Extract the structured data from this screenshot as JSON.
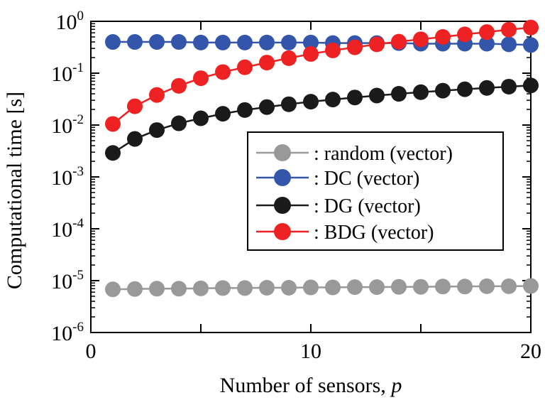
{
  "chart_data": {
    "type": "line",
    "xlabel": "Number of sensors, ",
    "xlabel_italic": "p",
    "ylabel": "Computational time [s]",
    "xlim": [
      0,
      20
    ],
    "ylim": [
      1e-06,
      1
    ],
    "yscale": "log",
    "grid": false,
    "legend_position": "center-right",
    "x_ticks": [
      {
        "value": 0,
        "label": "0"
      },
      {
        "value": 10,
        "label": "10"
      },
      {
        "value": 20,
        "label": "20"
      }
    ],
    "y_ticks": [
      {
        "value": 1,
        "base": "10",
        "exp": "0"
      },
      {
        "value": 0.1,
        "base": "10",
        "exp": "-1"
      },
      {
        "value": 0.01,
        "base": "10",
        "exp": "-2"
      },
      {
        "value": 0.001,
        "base": "10",
        "exp": "-3"
      },
      {
        "value": 0.0001,
        "base": "10",
        "exp": "-4"
      },
      {
        "value": 1e-05,
        "base": "10",
        "exp": "-5"
      },
      {
        "value": 1e-06,
        "base": "10",
        "exp": "-6"
      }
    ],
    "x": [
      1,
      2,
      3,
      4,
      5,
      6,
      7,
      8,
      9,
      10,
      11,
      12,
      13,
      14,
      15,
      16,
      17,
      18,
      19,
      20
    ],
    "series": [
      {
        "name": ": random (vector)",
        "color": "#999999",
        "values": [
          6.8e-06,
          6.9e-06,
          7e-06,
          7e-06,
          7.1e-06,
          7.2e-06,
          7.2e-06,
          7.3e-06,
          7.3e-06,
          7.4e-06,
          7.4e-06,
          7.5e-06,
          7.5e-06,
          7.6e-06,
          7.6e-06,
          7.7e-06,
          7.7e-06,
          7.8e-06,
          7.8e-06,
          7.9e-06
        ]
      },
      {
        "name": ": DC (vector)",
        "color": "#3355aa",
        "values": [
          0.4,
          0.4,
          0.4,
          0.4,
          0.39,
          0.39,
          0.39,
          0.39,
          0.39,
          0.39,
          0.38,
          0.38,
          0.38,
          0.38,
          0.37,
          0.37,
          0.37,
          0.37,
          0.36,
          0.35
        ]
      },
      {
        "name": ": DG (vector)",
        "color": "#1a1a1a",
        "values": [
          0.0029,
          0.0054,
          0.008,
          0.0108,
          0.0135,
          0.0165,
          0.0195,
          0.0222,
          0.0252,
          0.0282,
          0.031,
          0.034,
          0.037,
          0.04,
          0.043,
          0.046,
          0.049,
          0.052,
          0.055,
          0.058
        ]
      },
      {
        "name": ": BDG (vector)",
        "color": "#ee2222",
        "values": [
          0.0105,
          0.023,
          0.038,
          0.057,
          0.08,
          0.105,
          0.13,
          0.16,
          0.195,
          0.235,
          0.275,
          0.315,
          0.36,
          0.405,
          0.45,
          0.5,
          0.56,
          0.62,
          0.69,
          0.76
        ]
      }
    ]
  }
}
